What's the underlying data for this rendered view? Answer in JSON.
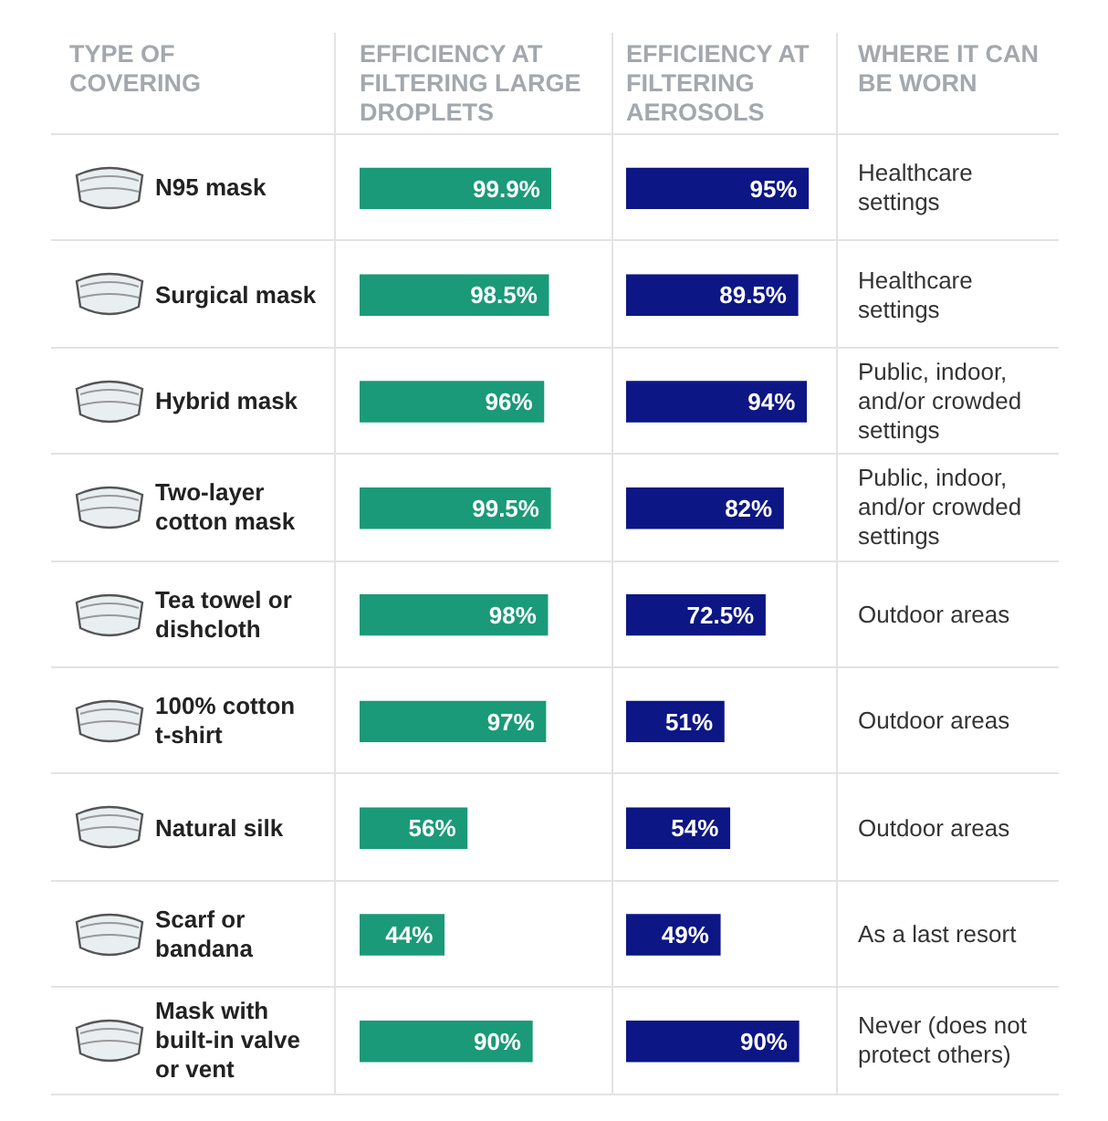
{
  "chart_data": [
    {
      "type": "bar",
      "orientation": "horizontal",
      "title": "EFFICIENCY AT FILTERING LARGE DROPLETS",
      "ylabel": "TYPE OF COVERING",
      "categories": [
        "N95 mask",
        "Surgical mask",
        "Hybrid mask",
        "Two-layer cotton mask",
        "Tea towel or dishcloth",
        "100% cotton t-shirt",
        "Natural silk",
        "Scarf or bandana",
        "Mask with built-in valve or vent"
      ],
      "values": [
        99.9,
        98.5,
        96,
        99.5,
        98,
        97,
        56,
        44,
        90
      ],
      "value_labels": [
        "99.9%",
        "98.5%",
        "96%",
        "99.5%",
        "98%",
        "97%",
        "56%",
        "44%",
        "90%"
      ],
      "color": "#1a9a78",
      "tick_labels": "y"
    },
    {
      "type": "bar",
      "orientation": "horizontal",
      "title": "EFFICIENCY AT FILTERING AEROSOLS",
      "values": [
        95,
        89.5,
        94,
        82,
        72.5,
        51,
        54,
        49,
        90
      ],
      "value_labels": [
        "95%",
        "89.5%",
        "94%",
        "82%",
        "72.5%",
        "51%",
        "54%",
        "49%",
        "90%"
      ],
      "color": "#0d1685",
      "tick_labels": false
    },
    {
      "type": "other",
      "title": "WHERE IT CAN BE WORN",
      "annotations": [
        "Healthcare settings",
        "Healthcare settings",
        "Public, indoor, and/or crowded settings",
        "Public, indoor, and/or crowded settings",
        "Outdoor areas",
        "Outdoor areas",
        "Outdoor areas",
        "As a last resort",
        "Never (does not protect others)"
      ]
    }
  ]
}
